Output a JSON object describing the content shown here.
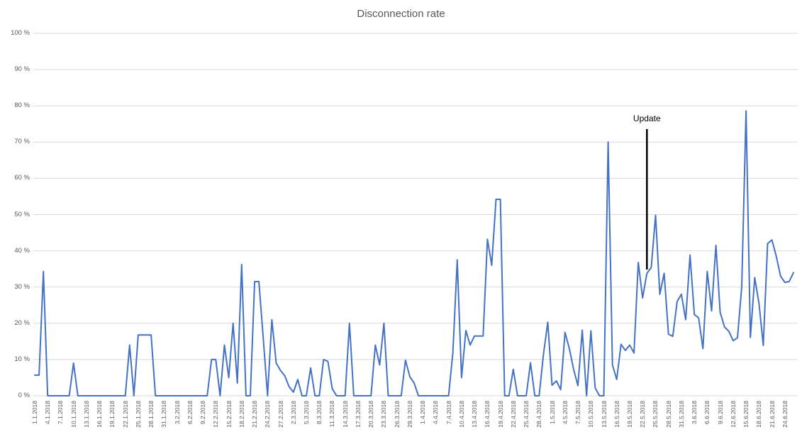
{
  "title": "Disconnection rate",
  "annotation": {
    "label": "Update",
    "date": "23.5.2018"
  },
  "colors": {
    "line": "#4472C4",
    "grid": "#D9D9D9",
    "axis_text": "#595959",
    "title_text": "#595959",
    "annotation": "#000000",
    "background": "#FFFFFF"
  },
  "y_axis": {
    "tick_labels_top_down": [
      "100 %",
      "90 %",
      "80 %",
      "70 %",
      "60 %",
      "50 %",
      "40 %",
      "30 %",
      "20 %",
      "10 %",
      "0 %"
    ]
  },
  "chart_data": {
    "type": "line",
    "title": "Disconnection rate",
    "xlabel": "",
    "ylabel": "",
    "ylim": [
      0,
      100
    ],
    "grid": true,
    "legend": false,
    "x_label_interval": 3,
    "x": [
      "1.1.2018",
      "2.1.2018",
      "3.1.2018",
      "4.1.2018",
      "5.1.2018",
      "6.1.2018",
      "7.1.2018",
      "8.1.2018",
      "9.1.2018",
      "10.1.2018",
      "11.1.2018",
      "12.1.2018",
      "13.1.2018",
      "14.1.2018",
      "15.1.2018",
      "16.1.2018",
      "17.1.2018",
      "18.1.2018",
      "19.1.2018",
      "20.1.2018",
      "21.1.2018",
      "22.1.2018",
      "23.1.2018",
      "24.1.2018",
      "25.1.2018",
      "26.1.2018",
      "27.1.2018",
      "28.1.2018",
      "29.1.2018",
      "30.1.2018",
      "31.1.2018",
      "1.2.2018",
      "2.2.2018",
      "3.2.2018",
      "4.2.2018",
      "5.2.2018",
      "6.2.2018",
      "7.2.2018",
      "8.2.2018",
      "9.2.2018",
      "10.2.2018",
      "11.2.2018",
      "12.2.2018",
      "13.2.2018",
      "14.2.2018",
      "15.2.2018",
      "16.2.2018",
      "17.2.2018",
      "18.2.2018",
      "19.2.2018",
      "20.2.2018",
      "21.2.2018",
      "22.2.2018",
      "23.2.2018",
      "24.2.2018",
      "25.2.2018",
      "26.2.2018",
      "27.2.2018",
      "28.2.2018",
      "1.3.2018",
      "2.3.2018",
      "3.3.2018",
      "4.3.2018",
      "5.3.2018",
      "6.3.2018",
      "7.3.2018",
      "8.3.2018",
      "9.3.2018",
      "10.3.2018",
      "11.3.2018",
      "12.3.2018",
      "13.3.2018",
      "14.3.2018",
      "15.3.2018",
      "16.3.2018",
      "17.3.2018",
      "18.3.2018",
      "19.3.2018",
      "20.3.2018",
      "21.3.2018",
      "22.3.2018",
      "23.3.2018",
      "24.3.2018",
      "25.3.2018",
      "26.3.2018",
      "27.3.2018",
      "28.3.2018",
      "29.3.2018",
      "30.3.2018",
      "31.3.2018",
      "1.4.2018",
      "2.4.2018",
      "3.4.2018",
      "4.4.2018",
      "5.4.2018",
      "6.4.2018",
      "7.4.2018",
      "8.4.2018",
      "9.4.2018",
      "10.4.2018",
      "11.4.2018",
      "12.4.2018",
      "13.4.2018",
      "14.4.2018",
      "15.4.2018",
      "16.4.2018",
      "17.4.2018",
      "18.4.2018",
      "19.4.2018",
      "20.4.2018",
      "21.4.2018",
      "22.4.2018",
      "23.4.2018",
      "24.4.2018",
      "25.4.2018",
      "26.4.2018",
      "27.4.2018",
      "28.4.2018",
      "29.4.2018",
      "30.4.2018",
      "1.5.2018",
      "2.5.2018",
      "3.5.2018",
      "4.5.2018",
      "5.5.2018",
      "6.5.2018",
      "7.5.2018",
      "8.5.2018",
      "9.5.2018",
      "10.5.2018",
      "11.5.2018",
      "12.5.2018",
      "13.5.2018",
      "14.5.2018",
      "15.5.2018",
      "16.5.2018",
      "17.5.2018",
      "18.5.2018",
      "19.5.2018",
      "20.5.2018",
      "21.5.2018",
      "22.5.2018",
      "23.5.2018",
      "24.5.2018",
      "25.5.2018",
      "26.5.2018",
      "27.5.2018",
      "28.5.2018",
      "29.5.2018",
      "30.5.2018",
      "31.5.2018",
      "1.6.2018",
      "2.6.2018",
      "3.6.2018",
      "4.6.2018",
      "5.6.2018",
      "6.6.2018",
      "7.6.2018",
      "8.6.2018",
      "9.6.2018",
      "10.6.2018",
      "11.6.2018",
      "12.6.2018",
      "13.6.2018",
      "14.6.2018",
      "15.6.2018",
      "16.6.2018",
      "17.6.2018",
      "18.6.2018",
      "19.6.2018",
      "20.6.2018",
      "21.6.2018",
      "22.6.2018",
      "23.6.2018",
      "24.6.2018",
      "25.6.2018",
      "26.6.2018"
    ],
    "values": [
      5.7,
      5.7,
      34.3,
      0,
      0,
      0,
      0,
      0,
      0,
      9,
      0,
      0,
      0,
      0,
      0,
      0,
      0,
      0,
      0,
      0,
      0,
      0,
      14,
      0,
      16.8,
      16.8,
      16.8,
      16.8,
      0,
      0,
      0,
      0,
      0,
      0,
      0,
      0,
      0,
      0,
      0,
      0,
      0,
      10,
      10,
      0,
      14,
      5,
      20,
      3.5,
      36.2,
      0,
      0,
      31.5,
      31.5,
      16,
      0,
      21,
      9,
      7,
      5.5,
      2.5,
      1,
      4.5,
      0,
      0,
      7.7,
      0,
      0,
      10,
      9.5,
      2,
      0,
      0,
      0,
      20,
      0,
      0,
      0,
      0,
      0,
      14,
      8.5,
      20,
      0,
      0,
      0,
      0,
      9.8,
      5.3,
      3.5,
      0,
      0,
      0,
      0,
      0,
      0,
      0,
      0,
      12,
      37.5,
      5,
      18,
      14,
      16.5,
      16.5,
      16.5,
      43.2,
      36,
      54.2,
      54.2,
      0,
      0,
      7.3,
      0,
      0,
      0,
      9.1,
      0,
      0,
      11.4,
      20.3,
      2.9,
      4.1,
      1.7,
      17.5,
      13,
      7.3,
      2.8,
      18.1,
      0,
      17.9,
      2.2,
      0,
      0,
      70,
      8.5,
      4.5,
      14.2,
      12.5,
      14,
      11.8,
      36.8,
      27,
      33.8,
      35.4,
      49.8,
      28,
      33.8,
      17,
      16.4,
      26,
      28,
      21,
      38.8,
      22.4,
      21.5,
      13,
      34.3,
      23.4,
      41.5,
      23,
      19,
      17.8,
      15.2,
      16,
      30,
      78.6,
      16.1,
      32.6,
      25.4,
      13.9,
      42,
      43,
      38.5,
      33,
      31.3,
      31.5,
      34
    ],
    "annotations": [
      {
        "text": "Update",
        "x": "23.5.2018",
        "marker": "vertical-line"
      }
    ]
  }
}
